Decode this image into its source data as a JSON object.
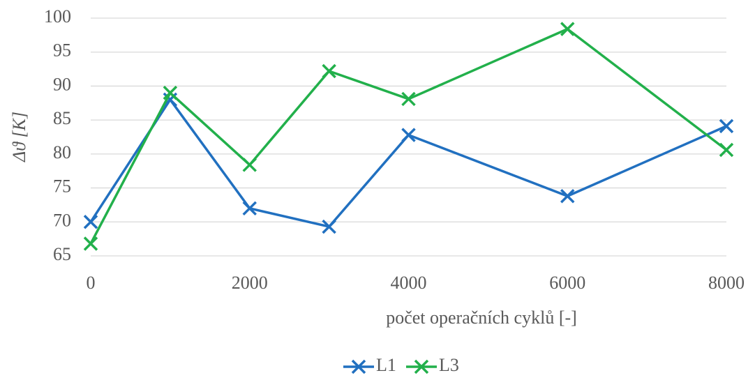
{
  "chart_data": {
    "type": "line",
    "x_label": "počet operačních cyklů [-]",
    "y_label": "Δϑ [K]",
    "x": [
      0,
      1000,
      2000,
      3000,
      4000,
      6000,
      8000
    ],
    "series": [
      {
        "name": "L1",
        "color": "#2170c0",
        "values": [
          70,
          88,
          72,
          69.3,
          82.8,
          73.8,
          84.1
        ]
      },
      {
        "name": "L3",
        "color": "#22b04b",
        "values": [
          66.8,
          89,
          78.4,
          92.2,
          88.1,
          98.4,
          80.6
        ]
      }
    ],
    "xlim": [
      0,
      8000
    ],
    "xticks": [
      0,
      2000,
      4000,
      6000,
      8000
    ],
    "ylim": [
      65,
      100
    ],
    "yticks": [
      65,
      70,
      75,
      80,
      85,
      90,
      95,
      100
    ],
    "grid": true,
    "legend": "bottom"
  }
}
